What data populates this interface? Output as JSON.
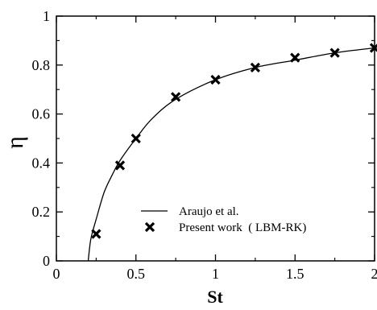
{
  "chart_data": {
    "type": "line",
    "xlabel": "St",
    "ylabel": "η",
    "xlim": [
      0,
      2
    ],
    "ylim": [
      0,
      1
    ],
    "x_ticks": [
      "0",
      "0.5",
      "1",
      "1.5",
      "2"
    ],
    "y_ticks": [
      "0",
      "0.2",
      "0.4",
      "0.6",
      "0.8",
      "1"
    ],
    "grid": false,
    "legend_position": "bottom-center",
    "series": [
      {
        "name": "Araujo et al.",
        "style": "line",
        "color": "#000000",
        "x": [
          0.2,
          0.21,
          0.22,
          0.25,
          0.3,
          0.35,
          0.4,
          0.5,
          0.6,
          0.75,
          1.0,
          1.25,
          1.5,
          1.75,
          2.0
        ],
        "y": [
          0.0,
          0.06,
          0.1,
          0.17,
          0.28,
          0.35,
          0.41,
          0.5,
          0.58,
          0.66,
          0.74,
          0.79,
          0.82,
          0.85,
          0.87
        ]
      },
      {
        "name": "Present work  ( LBM-RK)",
        "style": "marker-x",
        "color": "#000000",
        "x": [
          0.25,
          0.4,
          0.5,
          0.75,
          1.0,
          1.25,
          1.5,
          1.75,
          2.0
        ],
        "y": [
          0.11,
          0.39,
          0.5,
          0.67,
          0.74,
          0.79,
          0.83,
          0.85,
          0.87
        ]
      }
    ]
  }
}
